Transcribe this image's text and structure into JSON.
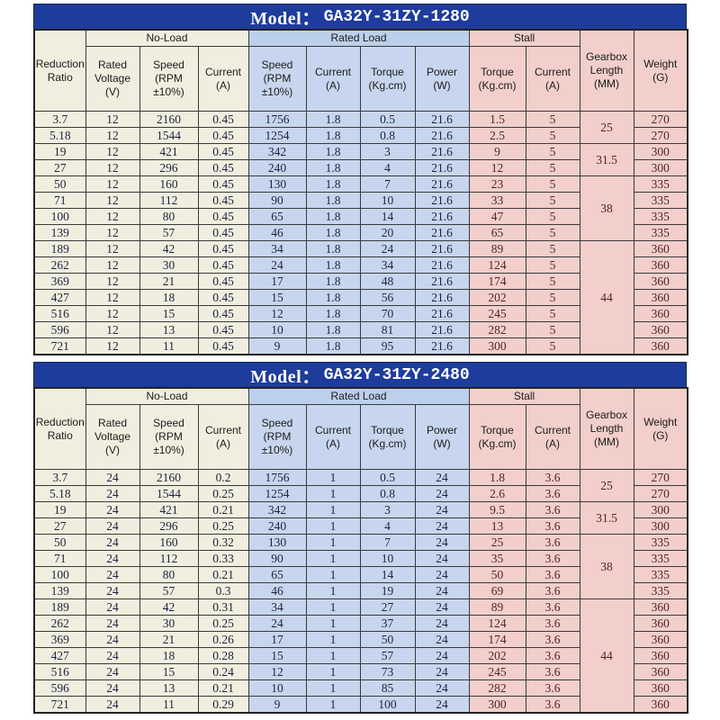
{
  "header": {
    "ratio": "Reduction\nRatio",
    "groups": {
      "no_load": "No-Load",
      "rated_load": "Rated Load",
      "stall": "Stall"
    },
    "rated_voltage": "Rated\nVoltage\n(V)",
    "nl_speed": "Speed\n(RPM\n±10%)",
    "nl_current": "Current\n(A)",
    "rl_speed": "Speed\n(RPM\n±10%)",
    "rl_current": "Current\n(A)",
    "rl_torque": "Torque\n(Kg.cm)",
    "rl_power": "Power\n(W)",
    "st_torque": "Torque\n(Kg.cm)",
    "st_current": "Current\n(A)",
    "gearbox": "Gearbox\nLength\n(MM)",
    "weight": "Weight\n(G)"
  },
  "colors": {
    "navy_bar": "#1e3c9c",
    "cream": "#f0efdf",
    "light_blue": "#c7d6ee",
    "pink": "#f2cfca",
    "border": "#3a3a3a"
  },
  "tables": [
    {
      "title_label": "Model：",
      "title_code": "GA32Y-31ZY-1280",
      "rows": [
        [
          "3.7",
          "12",
          "2160",
          "0.45",
          "1756",
          "1.8",
          "0.5",
          "21.6",
          "1.5",
          "5",
          "270"
        ],
        [
          "5.18",
          "12",
          "1544",
          "0.45",
          "1254",
          "1.8",
          "0.8",
          "21.6",
          "2.5",
          "5",
          "270"
        ],
        [
          "19",
          "12",
          "421",
          "0.45",
          "342",
          "1.8",
          "3",
          "21.6",
          "9",
          "5",
          "300"
        ],
        [
          "27",
          "12",
          "296",
          "0.45",
          "240",
          "1.8",
          "4",
          "21.6",
          "12",
          "5",
          "300"
        ],
        [
          "50",
          "12",
          "160",
          "0.45",
          "130",
          "1.8",
          "7",
          "21.6",
          "23",
          "5",
          "335"
        ],
        [
          "71",
          "12",
          "112",
          "0.45",
          "90",
          "1.8",
          "10",
          "21.6",
          "33",
          "5",
          "335"
        ],
        [
          "100",
          "12",
          "80",
          "0.45",
          "65",
          "1.8",
          "14",
          "21.6",
          "47",
          "5",
          "335"
        ],
        [
          "139",
          "12",
          "57",
          "0.45",
          "46",
          "1.8",
          "20",
          "21.6",
          "65",
          "5",
          "335"
        ],
        [
          "189",
          "12",
          "42",
          "0.45",
          "34",
          "1.8",
          "24",
          "21.6",
          "89",
          "5",
          "360"
        ],
        [
          "262",
          "12",
          "30",
          "0.45",
          "24",
          "1.8",
          "34",
          "21.6",
          "124",
          "5",
          "360"
        ],
        [
          "369",
          "12",
          "21",
          "0.45",
          "17",
          "1.8",
          "48",
          "21.6",
          "174",
          "5",
          "360"
        ],
        [
          "427",
          "12",
          "18",
          "0.45",
          "15",
          "1.8",
          "56",
          "21.6",
          "202",
          "5",
          "360"
        ],
        [
          "516",
          "12",
          "15",
          "0.45",
          "12",
          "1.8",
          "70",
          "21.6",
          "245",
          "5",
          "360"
        ],
        [
          "596",
          "12",
          "13",
          "0.45",
          "10",
          "1.8",
          "81",
          "21.6",
          "282",
          "5",
          "360"
        ],
        [
          "721",
          "12",
          "11",
          "0.45",
          "9",
          "1.8",
          "95",
          "21.6",
          "300",
          "5",
          "360"
        ]
      ],
      "gearbox_spans": [
        {
          "value": "25",
          "rows": 2
        },
        {
          "value": "31.5",
          "rows": 2
        },
        {
          "value": "38",
          "rows": 4
        },
        {
          "value": "44",
          "rows": 7
        }
      ]
    },
    {
      "title_label": "Model：",
      "title_code": "GA32Y-31ZY-2480",
      "rows": [
        [
          "3.7",
          "24",
          "2160",
          "0.2",
          "1756",
          "1",
          "0.5",
          "24",
          "1.8",
          "3.6",
          "270"
        ],
        [
          "5.18",
          "24",
          "1544",
          "0.25",
          "1254",
          "1",
          "0.8",
          "24",
          "2.6",
          "3.6",
          "270"
        ],
        [
          "19",
          "24",
          "421",
          "0.21",
          "342",
          "1",
          "3",
          "24",
          "9.5",
          "3.6",
          "300"
        ],
        [
          "27",
          "24",
          "296",
          "0.25",
          "240",
          "1",
          "4",
          "24",
          "13",
          "3.6",
          "300"
        ],
        [
          "50",
          "24",
          "160",
          "0.32",
          "130",
          "1",
          "7",
          "24",
          "25",
          "3.6",
          "335"
        ],
        [
          "71",
          "24",
          "112",
          "0.33",
          "90",
          "1",
          "10",
          "24",
          "35",
          "3.6",
          "335"
        ],
        [
          "100",
          "24",
          "80",
          "0.21",
          "65",
          "1",
          "14",
          "24",
          "50",
          "3.6",
          "335"
        ],
        [
          "139",
          "24",
          "57",
          "0.3",
          "46",
          "1",
          "19",
          "24",
          "69",
          "3.6",
          "335"
        ],
        [
          "189",
          "24",
          "42",
          "0.31",
          "34",
          "1",
          "27",
          "24",
          "89",
          "3.6",
          "360"
        ],
        [
          "262",
          "24",
          "30",
          "0.25",
          "24",
          "1",
          "37",
          "24",
          "124",
          "3.6",
          "360"
        ],
        [
          "369",
          "24",
          "21",
          "0.26",
          "17",
          "1",
          "50",
          "24",
          "174",
          "3.6",
          "360"
        ],
        [
          "427",
          "24",
          "18",
          "0.28",
          "15",
          "1",
          "57",
          "24",
          "202",
          "3.6",
          "360"
        ],
        [
          "516",
          "24",
          "15",
          "0.24",
          "12",
          "1",
          "73",
          "24",
          "245",
          "3.6",
          "360"
        ],
        [
          "596",
          "24",
          "13",
          "0.21",
          "10",
          "1",
          "85",
          "24",
          "282",
          "3.6",
          "360"
        ],
        [
          "721",
          "24",
          "11",
          "0.29",
          "9",
          "1",
          "100",
          "24",
          "300",
          "3.6",
          "360"
        ]
      ],
      "gearbox_spans": [
        {
          "value": "25",
          "rows": 2
        },
        {
          "value": "31.5",
          "rows": 2
        },
        {
          "value": "38",
          "rows": 4
        },
        {
          "value": "44",
          "rows": 7
        }
      ]
    }
  ]
}
